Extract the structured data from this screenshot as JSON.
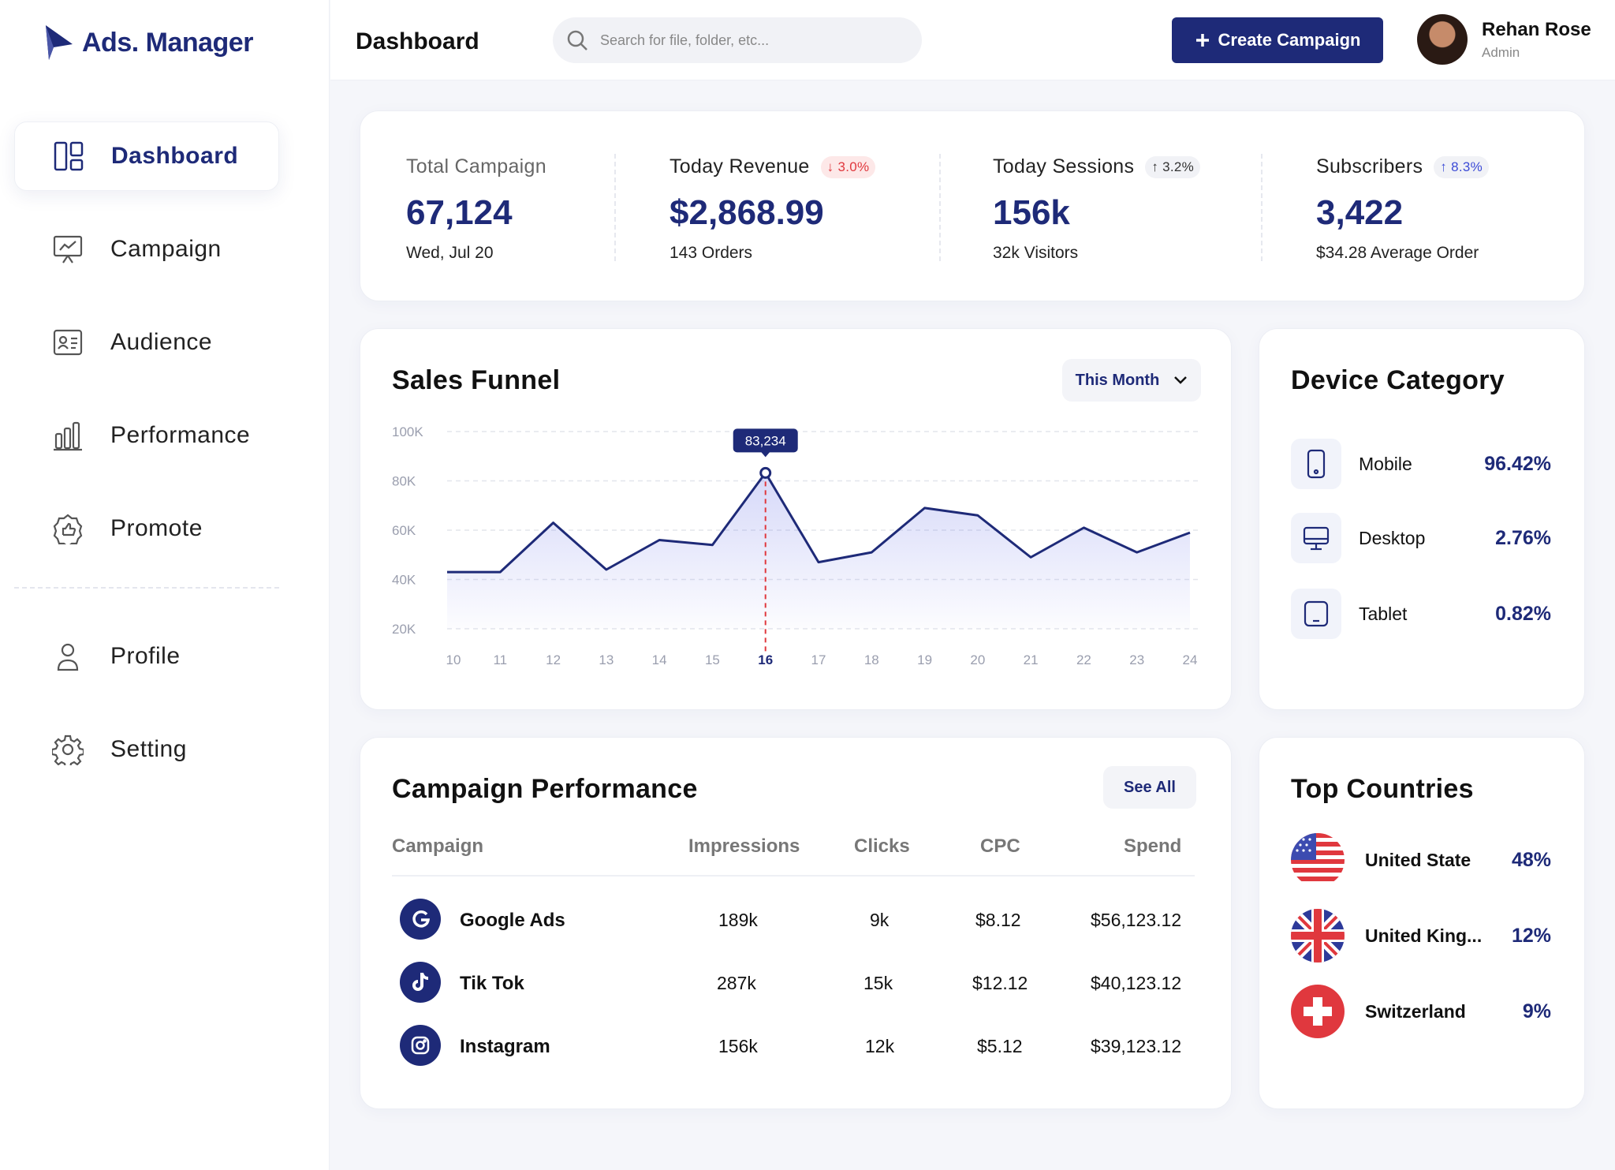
{
  "app": {
    "logo_text": "Ads. Manager"
  },
  "sidebar": {
    "items": [
      {
        "label": "Dashboard",
        "icon": "dashboard-icon"
      },
      {
        "label": "Campaign",
        "icon": "presentation-icon"
      },
      {
        "label": "Audience",
        "icon": "id-card-icon"
      },
      {
        "label": "Performance",
        "icon": "bar-chart-icon"
      },
      {
        "label": "Promote",
        "icon": "promote-badge-icon"
      },
      {
        "label": "Profile",
        "icon": "user-icon"
      },
      {
        "label": "Setting",
        "icon": "gear-icon"
      }
    ],
    "active": "Dashboard"
  },
  "header": {
    "title": "Dashboard",
    "search_placeholder": "Search for file, folder, etc...",
    "create_label": "Create Campaign",
    "user": {
      "name": "Rehan Rose",
      "role": "Admin"
    }
  },
  "stats": [
    {
      "label": "Total Campaign",
      "value": "67,124",
      "sub": "Wed, Jul 20",
      "badge": ""
    },
    {
      "label": "Today Revenue",
      "value": "$2,868.99",
      "sub": "143 Orders",
      "badge": "↓ 3.0%",
      "badge_type": "down"
    },
    {
      "label": "Today Sessions",
      "value": "156k",
      "sub": "32k Visitors",
      "badge": "↑ 3.2%",
      "badge_type": "up"
    },
    {
      "label": "Subscribers",
      "value": "3,422",
      "sub": "$34.28 Average Order",
      "badge": "↑ 8.3%",
      "badge_type": "up"
    }
  ],
  "funnel": {
    "title": "Sales Funnel",
    "period_label": "This Month",
    "tooltip": "83,234"
  },
  "chart_data": {
    "type": "area",
    "x": [
      10,
      11,
      12,
      13,
      14,
      15,
      16,
      17,
      18,
      19,
      20,
      21,
      22,
      23,
      24
    ],
    "y_ticks": [
      "100K",
      "80K",
      "60K",
      "40K",
      "20K"
    ],
    "ylim": [
      20000,
      100000
    ],
    "values": [
      43000,
      43000,
      63000,
      44000,
      56000,
      54000,
      83234,
      47000,
      51000,
      69000,
      66000,
      49000,
      61000,
      51000,
      59000
    ],
    "highlight_x": 16,
    "highlight_label": "83,234",
    "grid": true,
    "color": "#1e2a78"
  },
  "device": {
    "title": "Device Category",
    "items": [
      {
        "name": "Mobile",
        "pct": "96.42%",
        "icon": "mobile-icon"
      },
      {
        "name": "Desktop",
        "pct": "2.76%",
        "icon": "desktop-icon"
      },
      {
        "name": "Tablet",
        "pct": "0.82%",
        "icon": "tablet-icon"
      }
    ]
  },
  "performance": {
    "title": "Campaign Performance",
    "see_all": "See All",
    "columns": [
      "Campaign",
      "Impressions",
      "Clicks",
      "CPC",
      "Spend"
    ],
    "rows": [
      {
        "name": "Google Ads",
        "icon": "google-icon",
        "impressions": "189k",
        "clicks": "9k",
        "cpc": "$8.12",
        "spend": "$56,123.12"
      },
      {
        "name": "Tik Tok",
        "icon": "tiktok-icon",
        "impressions": "287k",
        "clicks": "15k",
        "cpc": "$12.12",
        "spend": "$40,123.12"
      },
      {
        "name": "Instagram",
        "icon": "instagram-icon",
        "impressions": "156k",
        "clicks": "12k",
        "cpc": "$5.12",
        "spend": "$39,123.12"
      }
    ]
  },
  "countries": {
    "title": "Top Countries",
    "items": [
      {
        "name": "United State",
        "pct": "48%",
        "icon": "us-flag-icon"
      },
      {
        "name": "United King...",
        "pct": "12%",
        "icon": "uk-flag-icon"
      },
      {
        "name": "Switzerland",
        "pct": "9%",
        "icon": "swiss-flag-icon"
      }
    ]
  },
  "colors": {
    "primary": "#1e2a78",
    "down": "#e0383e",
    "up": "#3c4bd6"
  }
}
